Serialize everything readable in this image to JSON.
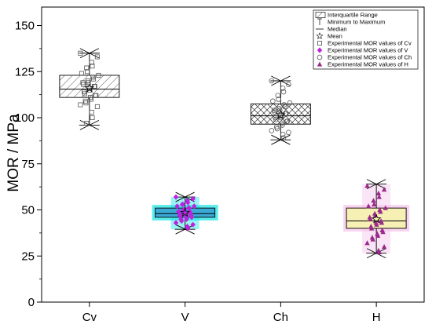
{
  "chart_data": {
    "type": "box",
    "ylabel": "MOR / MPa",
    "xlabel": "",
    "ylim": [
      0,
      160
    ],
    "yticks": [
      0,
      25,
      50,
      75,
      100,
      125,
      150
    ],
    "categories": [
      "Cv",
      "V",
      "Ch",
      "H"
    ],
    "boxes": [
      {
        "category": "Cv",
        "q1": 111,
        "median": 115.5,
        "q3": 123,
        "min": 96,
        "max": 135,
        "mean": 116,
        "box_fill": "#ffffff",
        "pattern": "diagonal-hatch",
        "point_marker": "square",
        "point_color": "#555555",
        "points": [
          135,
          133,
          130,
          128,
          127,
          125,
          124,
          123,
          122,
          121,
          120,
          119,
          119,
          118,
          117,
          117,
          116,
          115,
          114,
          113,
          112,
          112,
          111,
          110,
          109,
          108,
          107,
          106,
          103,
          100,
          97
        ]
      },
      {
        "category": "V",
        "q1": 46,
        "median": 48,
        "q3": 51,
        "min": 39.5,
        "max": 57,
        "mean": 48.5,
        "box_fill": "#3ba9d6",
        "highlight": "#22e6e6",
        "pattern": "none",
        "point_marker": "diamond",
        "point_color": "#c020e0",
        "points": [
          57,
          56,
          55,
          54,
          53,
          53,
          52,
          52,
          51,
          51,
          50,
          50,
          49,
          49,
          49,
          48,
          48,
          48,
          47,
          47,
          47,
          46,
          46,
          45,
          45,
          44,
          43,
          42,
          41,
          40
        ]
      },
      {
        "category": "Ch",
        "q1": 96.5,
        "median": 101,
        "q3": 107.5,
        "min": 88,
        "max": 120,
        "mean": 101.5,
        "box_fill": "#ffffff",
        "pattern": "cross-hatch",
        "point_marker": "circle",
        "point_color": "#555555",
        "points": [
          120,
          118,
          116,
          114,
          112,
          110,
          109,
          108,
          107,
          106,
          105,
          104,
          104,
          103,
          102,
          102,
          101,
          100,
          100,
          99,
          98,
          98,
          97,
          96,
          95,
          94,
          93,
          92,
          91,
          89
        ]
      },
      {
        "category": "H",
        "q1": 40,
        "median": 44,
        "q3": 51,
        "min": 26.5,
        "max": 64,
        "mean": 45,
        "box_fill": "#f7f0b4",
        "highlight": "#f5c6ec",
        "pattern": "none",
        "point_marker": "triangle",
        "point_color": "#9a2a8a",
        "points": [
          63,
          61,
          59,
          57,
          55,
          53,
          52,
          51,
          50,
          49,
          48,
          47,
          46,
          45,
          44,
          43,
          43,
          42,
          41,
          40,
          39,
          38,
          37,
          36,
          35,
          34,
          32,
          30,
          28,
          27
        ]
      }
    ],
    "legend": {
      "position": "top-right",
      "entries": [
        {
          "label": "Interquartile Range",
          "symbol": "hatched-box"
        },
        {
          "label": "Minimum to Maximum",
          "symbol": "whisker"
        },
        {
          "label": "Median",
          "symbol": "line"
        },
        {
          "label": "Mean",
          "symbol": "star"
        },
        {
          "label": "Experimental MOR values of Cv",
          "symbol": "square"
        },
        {
          "label": "Experimental MOR values of V",
          "symbol": "diamond"
        },
        {
          "label": "Experimental MOR values of Ch",
          "symbol": "circle"
        },
        {
          "label": "Experimental MOR values of H",
          "symbol": "triangle"
        }
      ]
    }
  }
}
